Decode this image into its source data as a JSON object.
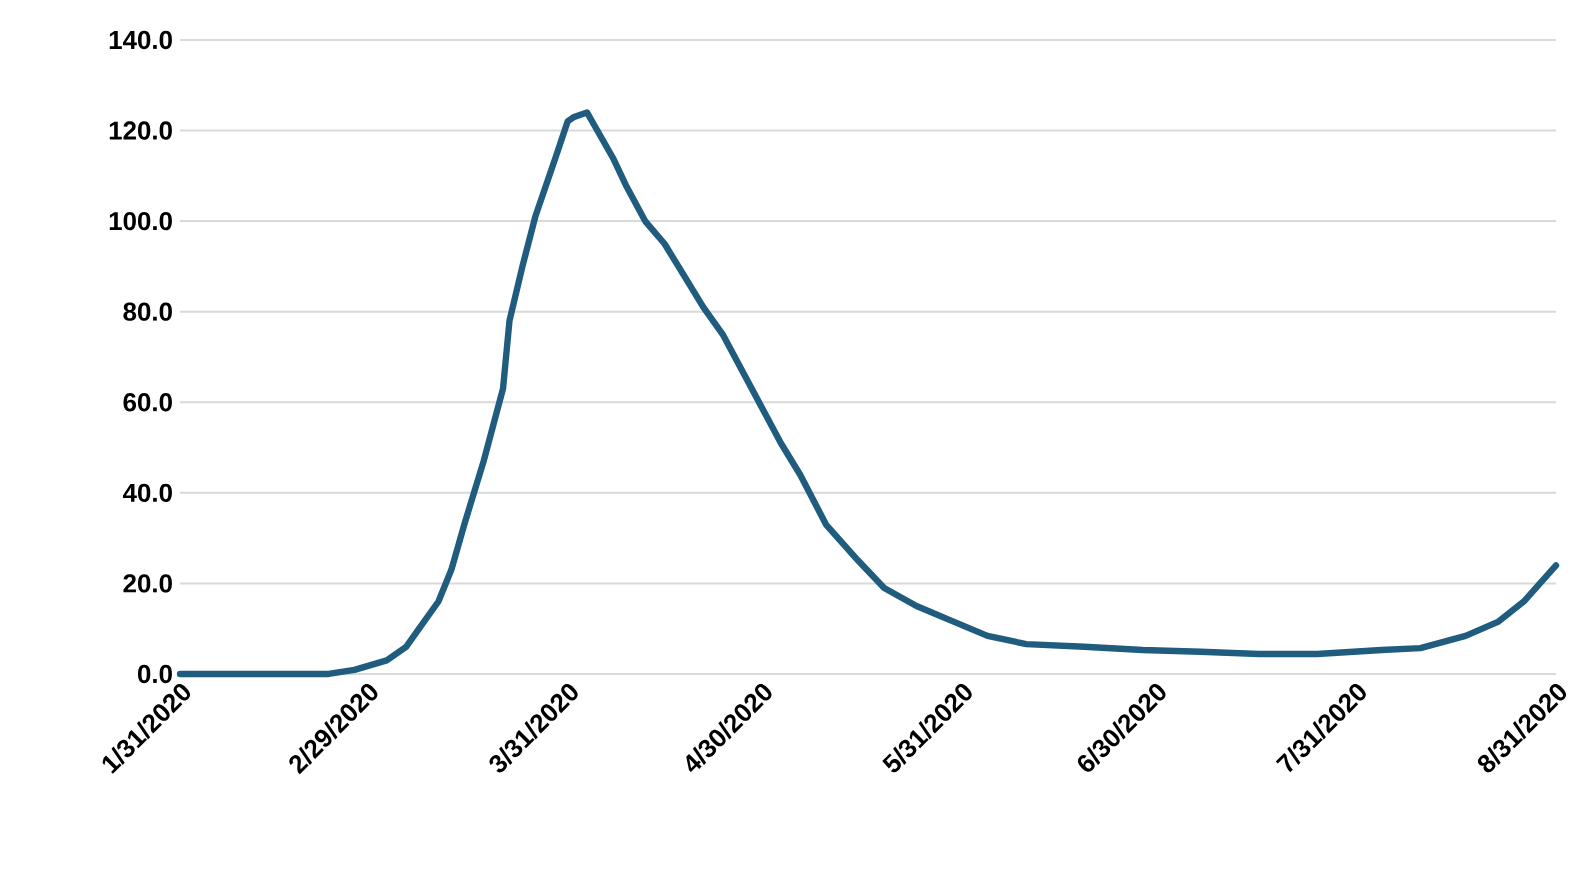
{
  "chart_data": {
    "type": "line",
    "x": [
      "2020-01-31",
      "2020-02-23",
      "2020-02-27",
      "2020-03-03",
      "2020-03-06",
      "2020-03-08",
      "2020-03-11",
      "2020-03-13",
      "2020-03-15",
      "2020-03-18",
      "2020-03-21",
      "2020-03-22",
      "2020-03-24",
      "2020-03-26",
      "2020-03-29",
      "2020-03-31",
      "2020-04-01",
      "2020-04-03",
      "2020-04-04",
      "2020-04-07",
      "2020-04-09",
      "2020-04-12",
      "2020-04-15",
      "2020-04-18",
      "2020-04-21",
      "2020-04-24",
      "2020-04-27",
      "2020-04-30",
      "2020-05-03",
      "2020-05-06",
      "2020-05-10",
      "2020-05-15",
      "2020-05-19",
      "2020-05-24",
      "2020-05-29",
      "2020-06-04",
      "2020-06-10",
      "2020-06-19",
      "2020-06-28",
      "2020-07-07",
      "2020-07-16",
      "2020-07-25",
      "2020-08-04",
      "2020-08-10",
      "2020-08-17",
      "2020-08-22",
      "2020-08-26",
      "2020-08-31"
    ],
    "series": [
      {
        "color": "#1f5c7e",
        "values": [
          0,
          0,
          0.9,
          3,
          6,
          10,
          16,
          23,
          33,
          47,
          63,
          78,
          90,
          101,
          113.5,
          122,
          123,
          124,
          121.5,
          114,
          108,
          100,
          95,
          88,
          81,
          75,
          67,
          59,
          51,
          44,
          33,
          25,
          19,
          15,
          12,
          8.4,
          6.6,
          6,
          5.3,
          4.9,
          4.4,
          4.4,
          5.3,
          5.7,
          8.4,
          11.5,
          16,
          24
        ]
      }
    ],
    "xlim": [
      "2020-01-31",
      "2020-08-31"
    ],
    "xticks": [
      {
        "value": "2020-01-31",
        "label": "1/31/2020"
      },
      {
        "value": "2020-02-29",
        "label": "2/29/2020"
      },
      {
        "value": "2020-03-31",
        "label": "3/31/2020"
      },
      {
        "value": "2020-04-30",
        "label": "4/30/2020"
      },
      {
        "value": "2020-05-31",
        "label": "5/31/2020"
      },
      {
        "value": "2020-06-30",
        "label": "6/30/2020"
      },
      {
        "value": "2020-07-31",
        "label": "7/31/2020"
      },
      {
        "value": "2020-08-31",
        "label": "8/31/2020"
      }
    ],
    "ylim": [
      0,
      140
    ],
    "yticks": [
      {
        "value": 0,
        "label": "0.0"
      },
      {
        "value": 20,
        "label": "20.0"
      },
      {
        "value": 40,
        "label": "40.0"
      },
      {
        "value": 60,
        "label": "60.0"
      },
      {
        "value": 80,
        "label": "80.0"
      },
      {
        "value": 100,
        "label": "100.0"
      },
      {
        "value": 120,
        "label": "120.0"
      },
      {
        "value": 140,
        "label": "140.0"
      }
    ],
    "grid": "y",
    "marker": "none",
    "line_style": "solid"
  }
}
